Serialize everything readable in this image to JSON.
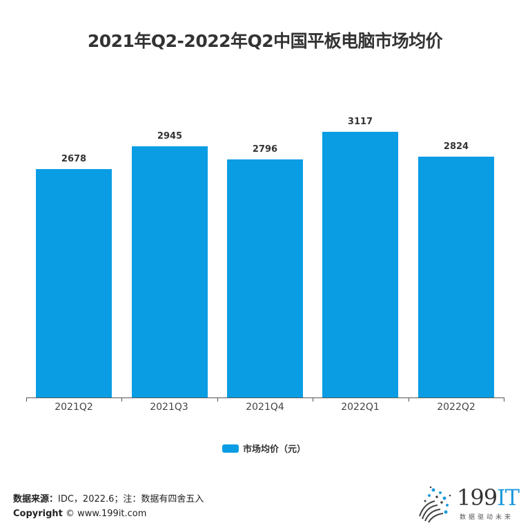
{
  "title": "2021年Q2-2022年Q2中国平板电脑市场均价",
  "legend": {
    "label": "市场均价（元）",
    "color": "#0A9DE4"
  },
  "footer": {
    "source_label": "数据来源：",
    "source_text": "IDC，2022.6；注：数据有四舍五入",
    "copyright_label": "Copyright",
    "copyright_text": " ©  www.199it.com"
  },
  "logo": {
    "number": "199",
    "it": "IT",
    "tagline": "数据驱动未来"
  },
  "chart_data": {
    "type": "bar",
    "title": "2021年Q2-2022年Q2中国平板电脑市场均价",
    "categories": [
      "2021Q2",
      "2021Q3",
      "2021Q4",
      "2022Q1",
      "2022Q2"
    ],
    "series": [
      {
        "name": "市场均价（元）",
        "values": [
          2678,
          2945,
          2796,
          3117,
          2824
        ],
        "color": "#0A9DE4"
      }
    ],
    "xlabel": "",
    "ylabel": "",
    "ylim": [
      0,
      3450
    ],
    "grid": false,
    "data_labels": true,
    "legend_position": "bottom"
  },
  "bars": [
    {
      "category": "2021Q2",
      "value": "2678"
    },
    {
      "category": "2021Q3",
      "value": "2945"
    },
    {
      "category": "2021Q4",
      "value": "2796"
    },
    {
      "category": "2022Q1",
      "value": "3117"
    },
    {
      "category": "2022Q2",
      "value": "2824"
    }
  ]
}
